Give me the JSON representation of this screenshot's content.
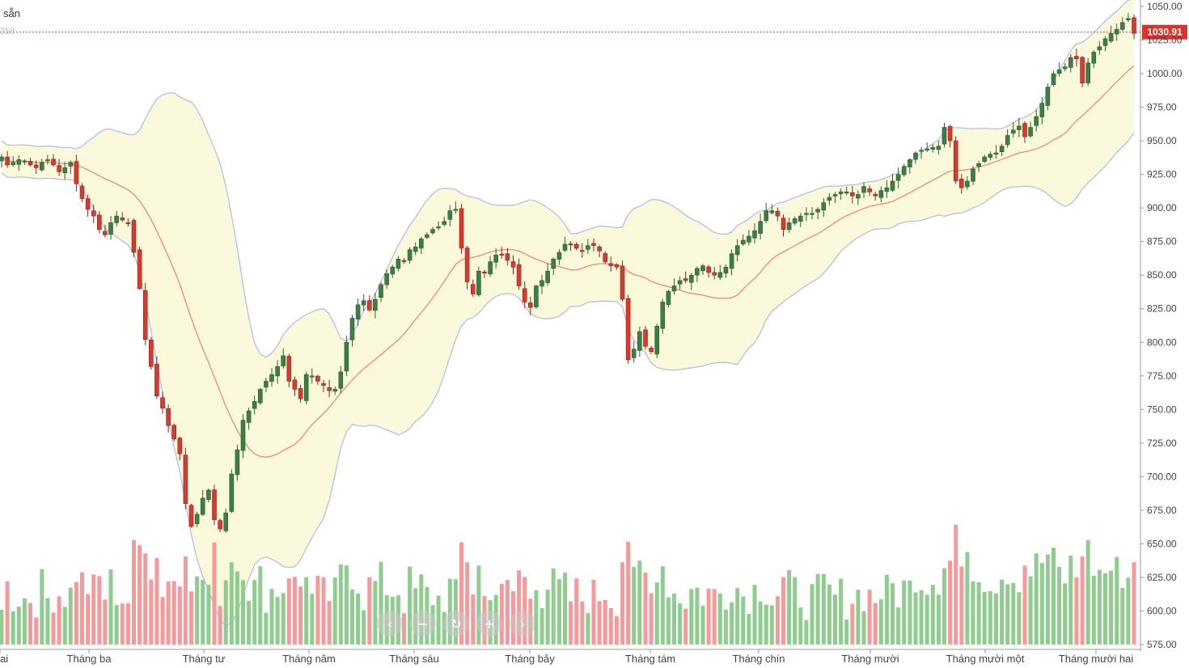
{
  "header": {
    "label": "sẵn",
    "sub_label": "358"
  },
  "nav": {
    "buttons": [
      {
        "name": "scroll-left-button",
        "icon": "chevron-left-icon",
        "glyph": "‹"
      },
      {
        "name": "zoom-out-button",
        "icon": "minus-icon",
        "glyph": "−"
      },
      {
        "name": "reset-button",
        "icon": "reset-icon",
        "glyph": "↻"
      },
      {
        "name": "zoom-in-button",
        "icon": "plus-icon",
        "glyph": "+"
      },
      {
        "name": "scroll-right-button",
        "icon": "chevron-right-icon",
        "glyph": "›"
      }
    ]
  },
  "colors": {
    "up": "#4f9a55",
    "up_fill": "#3f7d46",
    "down": "#d63b2f",
    "vol_up": "#90cc90",
    "vol_down": "#f49a9a",
    "band_fill": "#fbf9dc",
    "band_line": "#b8bde2",
    "ma_line": "#f08a70",
    "last_price": "#d9342b"
  },
  "chart_data": {
    "type": "candlestick",
    "title": "",
    "ylim": [
      575,
      1050
    ],
    "y_ticks": [
      "575.00",
      "600.00",
      "625.00",
      "650.00",
      "675.00",
      "700.00",
      "725.00",
      "750.00",
      "775.00",
      "800.00",
      "825.00",
      "850.00",
      "875.00",
      "900.00",
      "925.00",
      "950.00",
      "975.00",
      "1000.00",
      "1025.00",
      "1050.00"
    ],
    "x_labels": [
      "ai",
      "Tháng ba",
      "Tháng tư",
      "Tháng năm",
      "Tháng sáu",
      "Tháng bảy",
      "Tháng tám",
      "Tháng chín",
      "Tháng mười",
      "Tháng mười một",
      "Tháng mười hai"
    ],
    "last_price": 1030.91,
    "last_price_label": "1030.91",
    "indicators": [
      "Bollinger Bands (upper, lower)",
      "Moving average (middle)"
    ],
    "volume_note": "volume bars drawn on the same panel, relative scale",
    "closes": [
      938,
      932,
      934,
      936,
      935,
      932,
      930,
      934,
      936,
      932,
      927,
      930,
      934,
      918,
      907,
      899,
      894,
      884,
      880,
      889,
      894,
      891,
      889,
      867,
      840,
      802,
      782,
      760,
      751,
      738,
      728,
      717,
      680,
      663,
      672,
      684,
      690,
      668,
      661,
      673,
      702,
      720,
      742,
      749,
      756,
      765,
      771,
      776,
      782,
      790,
      771,
      765,
      758,
      776,
      775,
      771,
      768,
      764,
      765,
      778,
      800,
      818,
      828,
      831,
      824,
      832,
      843,
      851,
      856,
      862,
      860,
      869,
      871,
      877,
      880,
      884,
      886,
      890,
      898,
      899,
      870,
      845,
      836,
      853,
      852,
      860,
      865,
      865,
      861,
      856,
      842,
      830,
      826,
      842,
      846,
      853,
      862,
      867,
      873,
      873,
      870,
      868,
      872,
      872,
      868,
      860,
      857,
      856,
      832,
      787,
      795,
      808,
      797,
      793,
      812,
      830,
      838,
      842,
      846,
      846,
      850,
      855,
      857,
      852,
      850,
      852,
      856,
      866,
      872,
      876,
      879,
      883,
      890,
      898,
      898,
      894,
      884,
      889,
      892,
      894,
      896,
      896,
      899,
      904,
      908,
      910,
      912,
      912,
      909,
      910,
      916,
      912,
      909,
      913,
      915,
      920,
      925,
      931,
      936,
      941,
      943,
      944,
      945,
      946,
      960,
      950,
      920,
      915,
      920,
      929,
      933,
      938,
      940,
      941,
      946,
      954,
      958,
      961,
      953,
      960,
      968,
      978,
      990,
      1000,
      1003,
      1005,
      1012,
      1011,
      993,
      1008,
      1016,
      1020,
      1026,
      1030,
      1033,
      1038,
      1041,
      1030
    ]
  }
}
